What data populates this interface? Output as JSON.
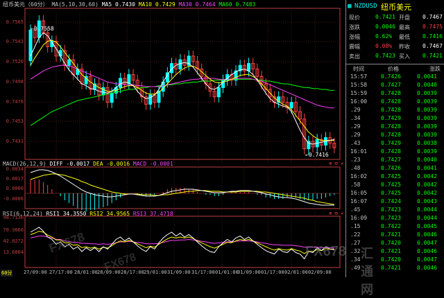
{
  "header": {
    "symbol": "纽币美元（60分）",
    "ma_label": "MA(5,10,30,60)",
    "ma5": "MA5 0.7430",
    "ma10": "MA10 0.7429",
    "ma30": "MA30 0.7464",
    "ma60": "MA60 0.7483"
  },
  "price_axis": [
    "0.7565",
    "0.7543",
    "0.7520",
    "0.7498",
    "0.7476",
    "0.7453",
    "0.7431"
  ],
  "high_label": "←0.7558",
  "low_label": "←0.7416",
  "macd": {
    "title": "MACD(26,12,9)",
    "diff": "DIFF -0.0017",
    "dea": "DEA -0.0016",
    "macd": "MACD -0.0001",
    "axis": [
      "0.0034",
      "0.0017",
      "0.0000",
      "-0.0006"
    ]
  },
  "rsi": {
    "title": "RSI(6,12,24)",
    "rsi1": "RSI1 34.3550",
    "rsi2": "RSI2 34.9565",
    "rsi3": "RSI3 37.4718",
    "axis": [
      "98.7130",
      "70.3660",
      "42.0272",
      "13.6884"
    ]
  },
  "period_label": "60分",
  "time_axis": [
    "27/09:00",
    "27/17:00",
    "28/01:00",
    "28/09:00",
    "28/17:00",
    "29/01:00",
    "31/09:00",
    "31/17:00",
    "01/01:00",
    "01/09:00",
    "01/17:00",
    "02/01:00",
    "02/09:00"
  ],
  "side": {
    "code": "NZDUSD",
    "name": "纽币美元",
    "quotes": [
      {
        "l1": "现价",
        "v1": "0.7421",
        "l2": "开盘",
        "v2": "0.7467",
        "c1": "g",
        "c2": "w"
      },
      {
        "l1": "涨跌",
        "v1": "0.0046",
        "l2": "最高",
        "v2": "0.7475",
        "c1": "g",
        "c2": "r"
      },
      {
        "l1": "涨幅",
        "v1": "0.62%",
        "l2": "最低",
        "v2": "0.7416",
        "c1": "g",
        "c2": "g"
      },
      {
        "l1": "震幅",
        "v1": "0.08%",
        "l2": "昨收",
        "v2": "0.7467",
        "c1": "r",
        "c2": "w"
      },
      {
        "l1": "卖出",
        "v1": "0.7423",
        "l2": "买入",
        "v2": "0.7421",
        "c1": "g",
        "c2": "g"
      }
    ],
    "tick_headers": [
      "时间",
      "价格",
      "涨跌"
    ],
    "ticks": [
      {
        "t": "15:57",
        "p": "0.7426",
        "d": "0.0041"
      },
      {
        "t": "15:58",
        "p": "0.7427",
        "d": "0.0040"
      },
      {
        "t": "15:59",
        "p": "0.7428",
        "d": "0.0039"
      },
      {
        "t": "16:00",
        "p": "0.7428",
        "d": "0.0039"
      },
      {
        "t": ".29",
        "p": "0.7428",
        "d": "0.0039"
      },
      {
        "t": ".34",
        "p": "0.7429",
        "d": "0.0039"
      },
      {
        "t": ".29",
        "p": "0.7428",
        "d": "0.0039"
      },
      {
        "t": ".29",
        "p": "0.7428",
        "d": "0.0039"
      },
      {
        "t": ".43",
        "p": "0.7429",
        "d": "0.0038"
      },
      {
        "t": "16:01",
        "p": "0.7428",
        "d": "0.0039"
      },
      {
        "t": ".23",
        "p": "0.7427",
        "d": "0.0040"
      },
      {
        "t": ".48",
        "p": "0.7426",
        "d": "0.0041"
      },
      {
        "t": "16:02",
        "p": "0.7425",
        "d": "0.0042"
      },
      {
        "t": ".58",
        "p": "0.7425",
        "d": "0.0042"
      },
      {
        "t": "16:05",
        "p": "0.7425",
        "d": "0.0042"
      },
      {
        "t": "16:07",
        "p": "0.7424",
        "d": "0.0043"
      },
      {
        "t": ".45",
        "p": "0.7423",
        "d": "0.0044"
      },
      {
        "t": "16:09",
        "p": "0.7423",
        "d": "0.0044"
      },
      {
        "t": ".15",
        "p": "0.7422",
        "d": "0.0045"
      },
      {
        "t": ".22",
        "p": "0.7421",
        "d": "0.0046"
      },
      {
        "t": ".27",
        "p": "0.7420",
        "d": "0.0047"
      },
      {
        "t": ".32",
        "p": "0.7421",
        "d": "0.0046"
      },
      {
        "t": ".34",
        "p": "0.7420",
        "d": "0.0047"
      },
      {
        "t": ".49",
        "p": "0.7421",
        "d": "0.0046"
      }
    ]
  },
  "watermark": "FX678",
  "watermark_cn": "汇通网",
  "colors": {
    "up": "#00ffff",
    "down": "#ff4040",
    "ma5": "#ffffff",
    "ma10": "#ffff00",
    "ma30": "#ff40ff",
    "ma60": "#00ff00",
    "axis": "#c04040"
  },
  "candles": [
    [
      0.7515,
      0.7548
    ],
    [
      0.7548,
      0.754
    ],
    [
      0.754,
      0.7558
    ],
    [
      0.7558,
      0.7545
    ],
    [
      0.7545,
      0.753
    ],
    [
      0.753,
      0.7536
    ],
    [
      0.7536,
      0.752
    ],
    [
      0.752,
      0.7526
    ],
    [
      0.7526,
      0.751
    ],
    [
      0.751,
      0.7516
    ],
    [
      0.7516,
      0.75
    ],
    [
      0.75,
      0.7506
    ],
    [
      0.7506,
      0.749
    ],
    [
      0.749,
      0.7498
    ],
    [
      0.7498,
      0.7484
    ],
    [
      0.7484,
      0.749
    ],
    [
      0.749,
      0.7478
    ],
    [
      0.7478,
      0.7486
    ],
    [
      0.7486,
      0.747
    ],
    [
      0.747,
      0.748
    ],
    [
      0.748,
      0.7486
    ],
    [
      0.7486,
      0.7496
    ],
    [
      0.7496,
      0.749
    ],
    [
      0.749,
      0.75
    ],
    [
      0.75,
      0.7494
    ],
    [
      0.7494,
      0.7486
    ],
    [
      0.7486,
      0.7476
    ],
    [
      0.7476,
      0.7468
    ],
    [
      0.7468,
      0.7478
    ],
    [
      0.7478,
      0.747
    ],
    [
      0.747,
      0.7482
    ],
    [
      0.7482,
      0.7492
    ],
    [
      0.7492,
      0.7502
    ],
    [
      0.7502,
      0.7512
    ],
    [
      0.7512,
      0.7506
    ],
    [
      0.7506,
      0.7516
    ],
    [
      0.7516,
      0.751
    ],
    [
      0.751,
      0.752
    ],
    [
      0.752,
      0.7514
    ],
    [
      0.7514,
      0.7506
    ],
    [
      0.7506,
      0.7498
    ],
    [
      0.7498,
      0.749
    ],
    [
      0.749,
      0.7482
    ],
    [
      0.7482,
      0.7476
    ],
    [
      0.7476,
      0.7486
    ],
    [
      0.7486,
      0.7494
    ],
    [
      0.7494,
      0.75
    ],
    [
      0.75,
      0.7494
    ],
    [
      0.7494,
      0.7504
    ],
    [
      0.7504,
      0.751
    ],
    [
      0.751,
      0.7504
    ],
    [
      0.7504,
      0.7512
    ],
    [
      0.7512,
      0.7506
    ],
    [
      0.7506,
      0.7498
    ],
    [
      0.7498,
      0.749
    ],
    [
      0.749,
      0.7484
    ],
    [
      0.7484,
      0.7476
    ],
    [
      0.7476,
      0.747
    ],
    [
      0.747,
      0.7476
    ],
    [
      0.7476,
      0.747
    ],
    [
      0.747,
      0.7464
    ],
    [
      0.7464,
      0.747
    ],
    [
      0.747,
      0.746
    ],
    [
      0.746,
      0.7452
    ],
    [
      0.7452,
      0.742
    ],
    [
      0.742,
      0.7428
    ],
    [
      0.7428,
      0.7422
    ],
    [
      0.7422,
      0.743
    ],
    [
      0.743,
      0.7424
    ],
    [
      0.7424,
      0.7432
    ],
    [
      0.7432,
      0.7426
    ],
    [
      0.7426,
      0.7421
    ]
  ],
  "ma_series": {
    "ma5": [
      0.752,
      0.753,
      0.754,
      0.7545,
      0.7542,
      0.7535,
      0.7528,
      0.752,
      0.7512,
      0.7505,
      0.75,
      0.7495,
      0.749,
      0.7488,
      0.7485,
      0.7484,
      0.7482,
      0.7481,
      0.748,
      0.7482,
      0.7486,
      0.749,
      0.7492,
      0.7491,
      0.7488,
      0.7482,
      0.7477,
      0.7474,
      0.7475,
      0.7478,
      0.7484,
      0.7492,
      0.75,
      0.7506,
      0.751,
      0.7512,
      0.7513,
      0.7512,
      0.7508,
      0.7502,
      0.7496,
      0.749,
      0.7485,
      0.7484,
      0.7487,
      0.7492,
      0.7496,
      0.75,
      0.7503,
      0.7505,
      0.7506,
      0.7504,
      0.75,
      0.7494,
      0.7487,
      0.748,
      0.7474,
      0.747,
      0.7468,
      0.7466,
      0.7465,
      0.746,
      0.745,
      0.744,
      0.7432,
      0.7426,
      0.7425,
      0.7426,
      0.7427,
      0.7428,
      0.7429,
      0.743
    ],
    "ma10": [
      0.751,
      0.7518,
      0.7525,
      0.7532,
      0.7536,
      0.7537,
      0.7535,
      0.753,
      0.7524,
      0.7518,
      0.7512,
      0.7506,
      0.75,
      0.7496,
      0.7492,
      0.7489,
      0.7486,
      0.7484,
      0.7482,
      0.7482,
      0.7483,
      0.7485,
      0.7487,
      0.7488,
      0.7488,
      0.7486,
      0.7483,
      0.748,
      0.7479,
      0.7479,
      0.7481,
      0.7485,
      0.749,
      0.7495,
      0.75,
      0.7504,
      0.7507,
      0.7509,
      0.7509,
      0.7507,
      0.7503,
      0.7499,
      0.7495,
      0.7492,
      0.7491,
      0.7492,
      0.7493,
      0.7495,
      0.7497,
      0.7499,
      0.75,
      0.75,
      0.7498,
      0.7495,
      0.749,
      0.7485,
      0.748,
      0.7475,
      0.7471,
      0.7468,
      0.7466,
      0.7462,
      0.7456,
      0.745,
      0.7444,
      0.7438,
      0.7434,
      0.7431,
      0.7429,
      0.7429,
      0.7429,
      0.7429
    ],
    "ma30": [
      0.7495,
      0.7498,
      0.7501,
      0.7504,
      0.7506,
      0.7508,
      0.7509,
      0.751,
      0.751,
      0.7509,
      0.7508,
      0.7506,
      0.7504,
      0.7502,
      0.75,
      0.7498,
      0.7496,
      0.7494,
      0.7492,
      0.7491,
      0.749,
      0.749,
      0.7489,
      0.7489,
      0.7489,
      0.7488,
      0.7488,
      0.7487,
      0.7487,
      0.7487,
      0.7487,
      0.7488,
      0.7489,
      0.749,
      0.7491,
      0.7492,
      0.7493,
      0.7494,
      0.7495,
      0.7495,
      0.7496,
      0.7496,
      0.7496,
      0.7496,
      0.7495,
      0.7495,
      0.7495,
      0.7495,
      0.7496,
      0.7496,
      0.7496,
      0.7496,
      0.7495,
      0.7494,
      0.7493,
      0.7491,
      0.7489,
      0.7487,
      0.7485,
      0.7483,
      0.7481,
      0.7479,
      0.7477,
      0.7475,
      0.7473,
      0.7471,
      0.7469,
      0.7467,
      0.7466,
      0.7465,
      0.7464,
      0.7464
    ],
    "ma60": [
      0.7445,
      0.7448,
      0.7451,
      0.7454,
      0.7457,
      0.746,
      0.7462,
      0.7464,
      0.7466,
      0.7468,
      0.747,
      0.7472,
      0.7473,
      0.7474,
      0.7475,
      0.7476,
      0.7477,
      0.7478,
      0.7479,
      0.748,
      0.7481,
      0.7482,
      0.7483,
      0.7484,
      0.7484,
      0.7485,
      0.7486,
      0.7486,
      0.7487,
      0.7487,
      0.7488,
      0.7488,
      0.7489,
      0.7489,
      0.749,
      0.749,
      0.7491,
      0.7491,
      0.7492,
      0.7492,
      0.7493,
      0.7493,
      0.7493,
      0.7494,
      0.7494,
      0.7494,
      0.7495,
      0.7495,
      0.7495,
      0.7495,
      0.7495,
      0.7495,
      0.7495,
      0.7494,
      0.7494,
      0.7493,
      0.7493,
      0.7492,
      0.7491,
      0.749,
      0.749,
      0.7489,
      0.7488,
      0.7487,
      0.7486,
      0.7486,
      0.7485,
      0.7485,
      0.7484,
      0.7484,
      0.7483,
      0.7483
    ]
  },
  "macd_series": {
    "diff": [
      0.003,
      0.0032,
      0.0034,
      0.0034,
      0.0033,
      0.0031,
      0.0028,
      0.0025,
      0.0021,
      0.0017,
      0.0013,
      0.0009,
      0.0005,
      0.0002,
      0.0,
      -0.0002,
      -0.0003,
      -0.0004,
      -0.0005,
      -0.0005,
      -0.0004,
      -0.0003,
      -0.0002,
      -0.0001,
      -0.0001,
      -0.0002,
      -0.0003,
      -0.0004,
      -0.0004,
      -0.0004,
      -0.0003,
      -0.0001,
      0.0001,
      0.0003,
      0.0004,
      0.0005,
      0.0006,
      0.0006,
      0.0006,
      0.0005,
      0.0004,
      0.0003,
      0.0002,
      0.0001,
      0.0001,
      0.0001,
      0.0002,
      0.0003,
      0.0003,
      0.0004,
      0.0004,
      0.0004,
      0.0003,
      0.0002,
      0.0001,
      -0.0001,
      -0.0002,
      -0.0004,
      -0.0005,
      -0.0006,
      -0.0006,
      -0.0007,
      -0.0008,
      -0.001,
      -0.0012,
      -0.0014,
      -0.0015,
      -0.0016,
      -0.0017,
      -0.0017,
      -0.0017,
      -0.0017
    ],
    "dea": [
      0.002,
      0.0022,
      0.0024,
      0.0026,
      0.0027,
      0.0028,
      0.0028,
      0.0027,
      0.0026,
      0.0024,
      0.0022,
      0.002,
      0.0017,
      0.0015,
      0.0012,
      0.001,
      0.0008,
      0.0006,
      0.0004,
      0.0002,
      0.0001,
      0.0,
      -0.0001,
      -0.0001,
      -0.0001,
      -0.0001,
      -0.0002,
      -0.0002,
      -0.0002,
      -0.0003,
      -0.0003,
      -0.0002,
      -0.0002,
      -0.0001,
      0.0,
      0.0001,
      0.0002,
      0.0003,
      0.0003,
      0.0004,
      0.0004,
      0.0004,
      0.0003,
      0.0003,
      0.0003,
      0.0002,
      0.0002,
      0.0002,
      0.0002,
      0.0003,
      0.0003,
      0.0003,
      0.0003,
      0.0003,
      0.0002,
      0.0002,
      0.0001,
      0.0,
      -0.0001,
      -0.0002,
      -0.0003,
      -0.0004,
      -0.0005,
      -0.0006,
      -0.0007,
      -0.0009,
      -0.001,
      -0.0012,
      -0.0013,
      -0.0014,
      -0.0015,
      -0.0016
    ]
  },
  "rsi_series": {
    "rsi1": [
      70,
      75,
      80,
      72,
      60,
      55,
      45,
      50,
      40,
      45,
      35,
      40,
      30,
      38,
      32,
      38,
      30,
      40,
      35,
      45,
      55,
      60,
      52,
      58,
      50,
      42,
      35,
      30,
      40,
      35,
      48,
      58,
      65,
      70,
      62,
      68,
      60,
      65,
      58,
      50,
      42,
      35,
      30,
      28,
      40,
      48,
      55,
      50,
      58,
      62,
      55,
      60,
      52,
      45,
      38,
      32,
      28,
      25,
      35,
      30,
      28,
      35,
      28,
      25,
      15,
      30,
      28,
      38,
      32,
      40,
      35,
      34
    ],
    "rsi2": [
      65,
      68,
      72,
      70,
      64,
      60,
      54,
      54,
      48,
      48,
      43,
      44,
      38,
      40,
      37,
      39,
      35,
      39,
      37,
      42,
      48,
      52,
      50,
      53,
      50,
      46,
      42,
      38,
      41,
      39,
      45,
      51,
      56,
      60,
      58,
      60,
      58,
      60,
      57,
      52,
      48,
      44,
      40,
      37,
      41,
      45,
      49,
      48,
      52,
      55,
      53,
      55,
      52,
      48,
      44,
      40,
      36,
      33,
      36,
      34,
      33,
      36,
      33,
      31,
      26,
      31,
      30,
      34,
      32,
      36,
      35,
      35
    ],
    "rsi3": [
      58,
      60,
      62,
      62,
      60,
      58,
      55,
      55,
      52,
      51,
      49,
      49,
      47,
      47,
      46,
      46,
      45,
      46,
      45,
      46,
      48,
      50,
      50,
      51,
      50,
      49,
      48,
      46,
      46,
      46,
      47,
      49,
      51,
      53,
      53,
      54,
      54,
      55,
      54,
      53,
      51,
      50,
      48,
      47,
      48,
      49,
      50,
      50,
      51,
      52,
      52,
      52,
      51,
      50,
      48,
      47,
      45,
      44,
      44,
      43,
      43,
      43,
      42,
      41,
      39,
      39,
      39,
      39,
      38,
      38,
      38,
      37
    ]
  }
}
